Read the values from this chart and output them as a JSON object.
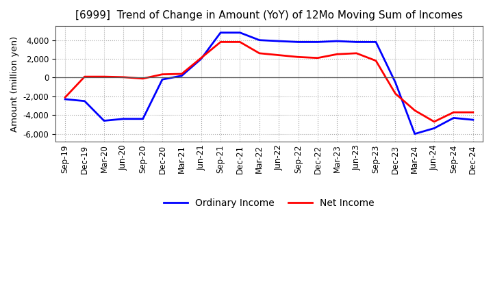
{
  "title": "[6999]  Trend of Change in Amount (YoY) of 12Mo Moving Sum of Incomes",
  "ylabel": "Amount (million yen)",
  "ylim": [
    -6800,
    5500
  ],
  "yticks": [
    -6000,
    -4000,
    -2000,
    0,
    2000,
    4000
  ],
  "x_labels": [
    "Sep-19",
    "Dec-19",
    "Mar-20",
    "Jun-20",
    "Sep-20",
    "Dec-20",
    "Mar-21",
    "Jun-21",
    "Sep-21",
    "Dec-21",
    "Mar-22",
    "Jun-22",
    "Sep-22",
    "Dec-22",
    "Mar-23",
    "Jun-23",
    "Sep-23",
    "Dec-23",
    "Mar-24",
    "Jun-24",
    "Sep-24",
    "Dec-24"
  ],
  "ordinary_income": [
    -2300,
    -2500,
    -4600,
    -4400,
    -4400,
    -200,
    200,
    2000,
    4800,
    4800,
    4000,
    3900,
    3800,
    3800,
    3900,
    3800,
    3800,
    -500,
    -6000,
    -5400,
    -4300,
    -4500
  ],
  "net_income": [
    -2100,
    100,
    100,
    50,
    -100,
    350,
    400,
    2100,
    3800,
    3800,
    2600,
    2400,
    2200,
    2100,
    2500,
    2600,
    1800,
    -1700,
    -3500,
    -4700,
    -3700,
    -3700
  ],
  "ordinary_color": "#0000ff",
  "net_color": "#ff0000",
  "background_color": "#ffffff",
  "grid_color": "#aaaaaa",
  "title_fontsize": 11,
  "tick_fontsize": 8.5,
  "label_fontsize": 9.5,
  "legend_fontsize": 10
}
